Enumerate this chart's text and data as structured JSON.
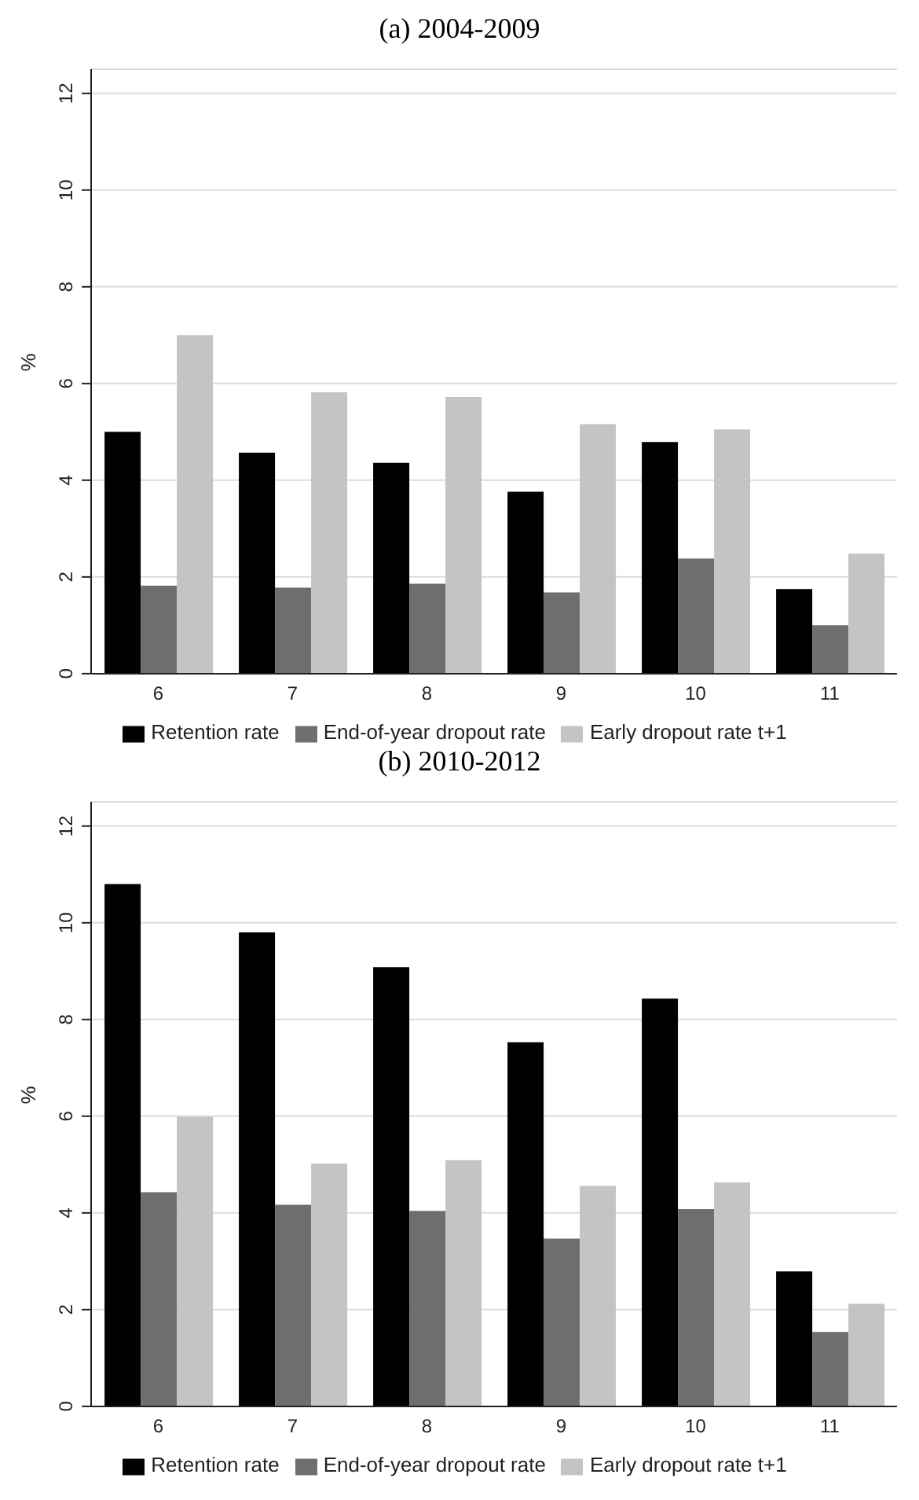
{
  "chart_data": [
    {
      "type": "bar",
      "title": "(a) 2004-2009",
      "ylabel": "%",
      "categories": [
        "6",
        "7",
        "8",
        "9",
        "10",
        "11"
      ],
      "series": [
        {
          "name": "Retention rate",
          "color": "#000000",
          "values": [
            5.0,
            4.57,
            4.36,
            3.76,
            4.79,
            1.75
          ]
        },
        {
          "name": "End-of-year dropout rate",
          "color": "#6e6e6e",
          "values": [
            1.82,
            1.78,
            1.86,
            1.68,
            2.38,
            1.0
          ]
        },
        {
          "name": "Early dropout rate t+1",
          "color": "#c4c4c4",
          "values": [
            7.0,
            5.82,
            5.72,
            5.16,
            5.05,
            2.48
          ]
        }
      ],
      "ylim": [
        0,
        12.5
      ],
      "yticks": [
        0,
        2,
        4,
        6,
        8,
        10,
        12
      ],
      "grid": "y",
      "legend": "bottom"
    },
    {
      "type": "bar",
      "title": "(b) 2010-2012",
      "ylabel": "%",
      "categories": [
        "6",
        "7",
        "8",
        "9",
        "10",
        "11"
      ],
      "series": [
        {
          "name": "Retention rate",
          "color": "#000000",
          "values": [
            10.8,
            9.8,
            9.08,
            7.53,
            8.43,
            2.79
          ]
        },
        {
          "name": "End-of-year dropout rate",
          "color": "#6e6e6e",
          "values": [
            4.43,
            4.17,
            4.04,
            3.47,
            4.08,
            1.54
          ]
        },
        {
          "name": "Early dropout rate t+1",
          "color": "#c4c4c4",
          "values": [
            5.99,
            5.02,
            5.09,
            4.56,
            4.63,
            2.12
          ]
        }
      ],
      "ylim": [
        0,
        12.5
      ],
      "yticks": [
        0,
        2,
        4,
        6,
        8,
        10,
        12
      ],
      "grid": "y",
      "legend": "bottom"
    }
  ]
}
